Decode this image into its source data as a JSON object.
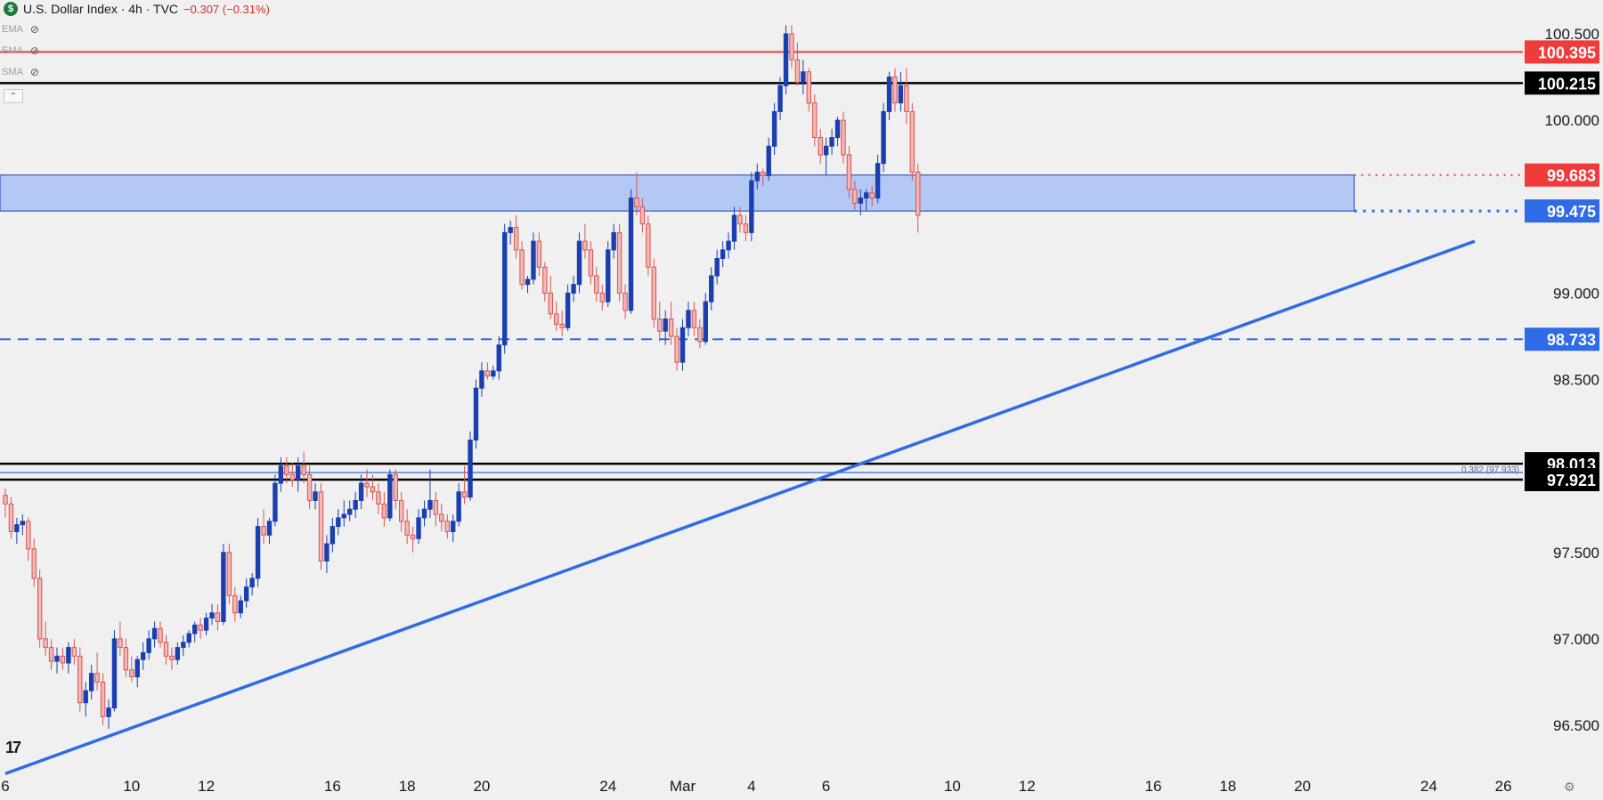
{
  "legend": {
    "symbol_badge": "$",
    "title": "U.S. Dollar Index · 4h · TVC",
    "change": "−0.307 (−0.31%)",
    "indicators": [
      {
        "label": "EMA",
        "icon": "eye-hidden-icon"
      },
      {
        "label": "EMA",
        "icon": "eye-hidden-icon"
      },
      {
        "label": "SMA",
        "icon": "eye-hidden-icon"
      }
    ]
  },
  "colors": {
    "bull": "#1a3fb0",
    "bear": "#d9534f",
    "zone_fill": "#a9c1f7",
    "trend": "#2f6be6",
    "red_level": "#ef3b3b",
    "black_level": "#000000"
  },
  "chart_data": {
    "type": "candlestick",
    "title": "U.S. Dollar Index · 4h · TVC",
    "ylim": [
      96.25,
      100.7
    ],
    "y_ticks": [
      "100.500",
      "100.000",
      "99.000",
      "98.500",
      "97.500",
      "97.000",
      "96.500"
    ],
    "y_tick_values": [
      100.5,
      100.0,
      99.0,
      98.5,
      97.5,
      97.0,
      96.5
    ],
    "x_ticks": [
      "6",
      "10",
      "12",
      "16",
      "18",
      "20",
      "24",
      "Mar",
      "4",
      "6",
      "10",
      "12",
      "16",
      "18",
      "20",
      "24",
      "26"
    ],
    "x_tick_index": [
      0,
      22,
      35,
      57,
      70,
      83,
      105,
      118,
      130,
      143,
      165,
      178,
      200,
      213,
      226,
      248,
      261
    ],
    "price_labels": [
      {
        "text": "100.395",
        "value": 100.395,
        "style": "red"
      },
      {
        "text": "100.215",
        "value": 100.215,
        "style": "black"
      },
      {
        "text": "99.683",
        "value": 99.683,
        "style": "red"
      },
      {
        "text": "99.475",
        "value": 99.475,
        "style": "blue"
      },
      {
        "text": "98.733",
        "value": 98.733,
        "style": "blue"
      },
      {
        "text": "98.013",
        "value": 98.013,
        "style": "black"
      },
      {
        "text": "97.921",
        "value": 97.921,
        "style": "black"
      }
    ],
    "horizontal_lines": [
      {
        "value": 100.395,
        "style": "red-solid"
      },
      {
        "value": 100.215,
        "style": "black-solid"
      },
      {
        "value": 99.683,
        "style": "red-dotted"
      },
      {
        "value": 99.475,
        "style": "blue-dotted"
      },
      {
        "value": 98.733,
        "style": "blue-dashed"
      },
      {
        "value": 98.013,
        "style": "black-solid"
      },
      {
        "value": 97.962,
        "style": "blue-thin"
      },
      {
        "value": 97.921,
        "style": "black-solid"
      }
    ],
    "zone": {
      "top": 99.683,
      "bottom": 99.475,
      "end_index": 235
    },
    "fib_label": "0.382 (97.933)",
    "trendline": {
      "start": {
        "index": 0,
        "value": 96.22
      },
      "end": {
        "index": 256,
        "value": 99.3
      }
    },
    "candles": [
      [
        97.83,
        97.87,
        97.7,
        97.78
      ],
      [
        97.78,
        97.82,
        97.58,
        97.62
      ],
      [
        97.62,
        97.7,
        97.55,
        97.66
      ],
      [
        97.66,
        97.72,
        97.6,
        97.68
      ],
      [
        97.68,
        97.7,
        97.45,
        97.52
      ],
      [
        97.52,
        97.58,
        97.3,
        97.35
      ],
      [
        97.35,
        97.4,
        96.95,
        97.0
      ],
      [
        97.0,
        97.1,
        96.9,
        96.95
      ],
      [
        96.95,
        97.0,
        96.82,
        96.87
      ],
      [
        96.87,
        96.95,
        96.8,
        96.9
      ],
      [
        96.9,
        96.95,
        96.82,
        96.86
      ],
      [
        96.86,
        96.98,
        96.8,
        96.95
      ],
      [
        96.95,
        97.0,
        96.85,
        96.9
      ],
      [
        96.9,
        96.95,
        96.58,
        96.63
      ],
      [
        96.63,
        96.75,
        96.55,
        96.7
      ],
      [
        96.7,
        96.85,
        96.65,
        96.8
      ],
      [
        96.8,
        96.92,
        96.7,
        96.75
      ],
      [
        96.75,
        96.8,
        96.5,
        96.55
      ],
      [
        96.55,
        96.65,
        96.48,
        96.6
      ],
      [
        96.6,
        97.05,
        96.58,
        97.0
      ],
      [
        97.0,
        97.1,
        96.9,
        96.95
      ],
      [
        96.95,
        97.0,
        96.78,
        96.82
      ],
      [
        96.82,
        96.9,
        96.75,
        96.78
      ],
      [
        96.78,
        96.9,
        96.72,
        96.88
      ],
      [
        96.88,
        96.98,
        96.82,
        96.92
      ],
      [
        96.92,
        97.05,
        96.88,
        97.0
      ],
      [
        97.0,
        97.1,
        96.95,
        97.06
      ],
      [
        97.06,
        97.1,
        96.95,
        96.98
      ],
      [
        96.98,
        97.02,
        96.85,
        96.9
      ],
      [
        96.9,
        96.95,
        96.82,
        96.88
      ],
      [
        96.88,
        96.98,
        96.85,
        96.95
      ],
      [
        96.95,
        97.02,
        96.9,
        96.98
      ],
      [
        96.98,
        97.05,
        96.95,
        97.03
      ],
      [
        97.03,
        97.1,
        96.98,
        97.08
      ],
      [
        97.08,
        97.12,
        97.0,
        97.05
      ],
      [
        97.05,
        97.15,
        97.02,
        97.12
      ],
      [
        97.12,
        97.2,
        97.08,
        97.15
      ],
      [
        97.15,
        97.2,
        97.05,
        97.1
      ],
      [
        97.1,
        97.55,
        97.08,
        97.5
      ],
      [
        97.5,
        97.55,
        97.2,
        97.25
      ],
      [
        97.25,
        97.3,
        97.1,
        97.15
      ],
      [
        97.15,
        97.25,
        97.12,
        97.22
      ],
      [
        97.22,
        97.35,
        97.18,
        97.3
      ],
      [
        97.3,
        97.38,
        97.25,
        97.35
      ],
      [
        97.35,
        97.7,
        97.3,
        97.65
      ],
      [
        97.65,
        97.75,
        97.55,
        97.6
      ],
      [
        97.6,
        97.7,
        97.55,
        97.68
      ],
      [
        97.68,
        97.95,
        97.65,
        97.9
      ],
      [
        97.9,
        98.05,
        97.85,
        98.0
      ],
      [
        98.0,
        98.05,
        97.9,
        97.95
      ],
      [
        97.95,
        98.02,
        97.88,
        97.92
      ],
      [
        97.92,
        98.05,
        97.85,
        98.0
      ],
      [
        98.0,
        98.08,
        97.9,
        97.95
      ],
      [
        97.95,
        98.0,
        97.75,
        97.8
      ],
      [
        97.8,
        97.9,
        97.75,
        97.85
      ],
      [
        97.85,
        97.9,
        97.4,
        97.45
      ],
      [
        97.45,
        97.6,
        97.38,
        97.55
      ],
      [
        97.55,
        97.7,
        97.5,
        97.65
      ],
      [
        97.65,
        97.75,
        97.6,
        97.7
      ],
      [
        97.7,
        97.8,
        97.65,
        97.72
      ],
      [
        97.72,
        97.8,
        97.68,
        97.75
      ],
      [
        97.75,
        97.85,
        97.7,
        97.8
      ],
      [
        97.8,
        97.95,
        97.75,
        97.9
      ],
      [
        97.9,
        97.98,
        97.82,
        97.88
      ],
      [
        97.88,
        97.95,
        97.8,
        97.85
      ],
      [
        97.85,
        97.9,
        97.72,
        97.78
      ],
      [
        97.78,
        97.85,
        97.65,
        97.7
      ],
      [
        97.7,
        97.98,
        97.68,
        97.95
      ],
      [
        97.95,
        97.98,
        97.75,
        97.8
      ],
      [
        97.8,
        97.85,
        97.62,
        97.68
      ],
      [
        97.68,
        97.75,
        97.55,
        97.6
      ],
      [
        97.6,
        97.65,
        97.5,
        97.58
      ],
      [
        97.58,
        97.75,
        97.55,
        97.7
      ],
      [
        97.7,
        97.8,
        97.65,
        97.75
      ],
      [
        97.75,
        97.98,
        97.7,
        97.8
      ],
      [
        97.8,
        97.85,
        97.65,
        97.72
      ],
      [
        97.72,
        97.78,
        97.62,
        97.68
      ],
      [
        97.68,
        97.72,
        97.58,
        97.62
      ],
      [
        97.62,
        97.72,
        97.56,
        97.68
      ],
      [
        97.68,
        97.9,
        97.65,
        97.85
      ],
      [
        97.85,
        98.0,
        97.78,
        97.82
      ],
      [
        97.82,
        98.2,
        97.8,
        98.15
      ],
      [
        98.15,
        98.5,
        98.1,
        98.45
      ],
      [
        98.45,
        98.6,
        98.4,
        98.55
      ],
      [
        98.55,
        98.6,
        98.5,
        98.52
      ],
      [
        98.52,
        98.58,
        98.5,
        98.55
      ],
      [
        98.55,
        98.75,
        98.5,
        98.7
      ],
      [
        98.7,
        99.4,
        98.65,
        99.35
      ],
      [
        99.35,
        99.42,
        99.28,
        99.38
      ],
      [
        99.38,
        99.45,
        99.2,
        99.25
      ],
      [
        99.25,
        99.3,
        99.02,
        99.05
      ],
      [
        99.05,
        99.1,
        99.0,
        99.08
      ],
      [
        99.08,
        99.35,
        99.05,
        99.3
      ],
      [
        99.3,
        99.35,
        99.1,
        99.15
      ],
      [
        99.15,
        99.18,
        98.95,
        99.0
      ],
      [
        99.0,
        99.1,
        98.85,
        98.88
      ],
      [
        98.88,
        98.95,
        98.78,
        98.82
      ],
      [
        98.82,
        98.9,
        98.75,
        98.8
      ],
      [
        98.8,
        99.05,
        98.78,
        99.0
      ],
      [
        99.0,
        99.1,
        98.95,
        99.05
      ],
      [
        99.05,
        99.35,
        99.0,
        99.3
      ],
      [
        99.3,
        99.4,
        99.2,
        99.25
      ],
      [
        99.25,
        99.3,
        99.05,
        99.1
      ],
      [
        99.1,
        99.15,
        98.95,
        99.0
      ],
      [
        99.0,
        99.05,
        98.9,
        98.95
      ],
      [
        98.95,
        99.3,
        98.92,
        99.25
      ],
      [
        99.25,
        99.4,
        99.2,
        99.35
      ],
      [
        99.35,
        99.4,
        98.95,
        99.0
      ],
      [
        99.0,
        99.05,
        98.85,
        98.9
      ],
      [
        98.9,
        99.6,
        98.88,
        99.55
      ],
      [
        99.55,
        99.7,
        99.45,
        99.5
      ],
      [
        99.5,
        99.55,
        99.35,
        99.4
      ],
      [
        99.4,
        99.45,
        99.1,
        99.15
      ],
      [
        99.15,
        99.2,
        98.8,
        98.85
      ],
      [
        98.85,
        98.95,
        98.72,
        98.78
      ],
      [
        98.78,
        98.9,
        98.7,
        98.85
      ],
      [
        98.85,
        98.95,
        98.7,
        98.75
      ],
      [
        98.75,
        98.8,
        98.55,
        98.6
      ],
      [
        98.6,
        98.85,
        98.55,
        98.8
      ],
      [
        98.8,
        98.95,
        98.75,
        98.9
      ],
      [
        98.9,
        98.95,
        98.75,
        98.8
      ],
      [
        98.8,
        98.85,
        98.68,
        98.72
      ],
      [
        98.72,
        99.0,
        98.7,
        98.95
      ],
      [
        98.95,
        99.15,
        98.9,
        99.1
      ],
      [
        99.1,
        99.25,
        99.05,
        99.2
      ],
      [
        99.2,
        99.3,
        99.15,
        99.25
      ],
      [
        99.25,
        99.35,
        99.2,
        99.3
      ],
      [
        99.3,
        99.5,
        99.25,
        99.45
      ],
      [
        99.45,
        99.5,
        99.35,
        99.4
      ],
      [
        99.4,
        99.45,
        99.3,
        99.35
      ],
      [
        99.35,
        99.7,
        99.3,
        99.65
      ],
      [
        99.65,
        99.75,
        99.6,
        99.7
      ],
      [
        99.7,
        99.72,
        99.62,
        99.68
      ],
      [
        99.68,
        99.9,
        99.65,
        99.85
      ],
      [
        99.85,
        100.1,
        99.8,
        100.05
      ],
      [
        100.05,
        100.25,
        100.0,
        100.2
      ],
      [
        100.2,
        100.55,
        100.15,
        100.5
      ],
      [
        100.5,
        100.55,
        100.3,
        100.35
      ],
      [
        100.35,
        100.45,
        100.2,
        100.22
      ],
      [
        100.22,
        100.35,
        100.15,
        100.28
      ],
      [
        100.28,
        100.3,
        100.05,
        100.1
      ],
      [
        100.1,
        100.15,
        99.85,
        99.9
      ],
      [
        99.9,
        99.95,
        99.75,
        99.8
      ],
      [
        99.8,
        99.9,
        99.68,
        99.85
      ],
      [
        99.85,
        99.95,
        99.8,
        99.9
      ],
      [
        99.9,
        100.02,
        99.85,
        100.0
      ],
      [
        100.0,
        100.05,
        99.75,
        99.8
      ],
      [
        99.8,
        99.85,
        99.55,
        99.6
      ],
      [
        99.6,
        99.65,
        99.48,
        99.52
      ],
      [
        99.52,
        99.6,
        99.45,
        99.55
      ],
      [
        99.55,
        99.6,
        99.48,
        99.58
      ],
      [
        99.58,
        99.62,
        99.5,
        99.55
      ],
      [
        99.55,
        99.8,
        99.52,
        99.75
      ],
      [
        99.75,
        100.1,
        99.7,
        100.05
      ],
      [
        100.05,
        100.28,
        100.0,
        100.25
      ],
      [
        100.25,
        100.3,
        100.05,
        100.1
      ],
      [
        100.1,
        100.28,
        100.05,
        100.2
      ],
      [
        100.2,
        100.3,
        99.98,
        100.05
      ],
      [
        100.05,
        100.1,
        99.65,
        99.7
      ],
      [
        99.7,
        99.75,
        99.35,
        99.45
      ]
    ]
  }
}
